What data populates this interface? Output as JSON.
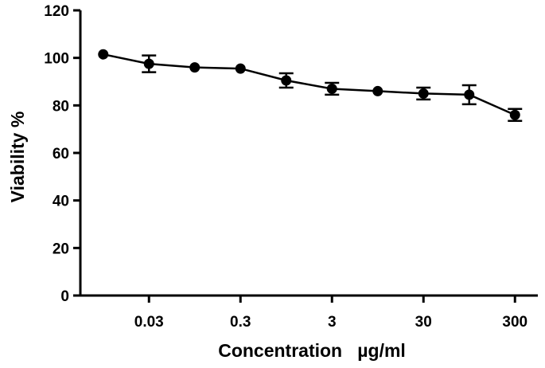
{
  "chart_data": {
    "type": "line",
    "xlabel": "Concentration   µg/ml",
    "ylabel": "Viability %",
    "ylim": [
      0,
      120
    ],
    "yticks": [
      0,
      20,
      40,
      60,
      80,
      100,
      120
    ],
    "x_tick_labels": [
      "0.03",
      "0.3",
      "3",
      "30",
      "300"
    ],
    "x_tick_positions": [
      2,
      4,
      6,
      8,
      10
    ],
    "xlim": [
      0.5,
      10.5
    ],
    "grid": false,
    "series": [
      {
        "x": [
          1,
          2,
          3,
          4,
          5,
          6,
          7,
          8,
          9,
          10
        ],
        "values": [
          101.5,
          97.5,
          96,
          95.5,
          90.5,
          87,
          86,
          85,
          84.5,
          76
        ],
        "errors": [
          0,
          3.5,
          0,
          0,
          3,
          2.5,
          0,
          2.5,
          4,
          2.5
        ]
      }
    ]
  }
}
